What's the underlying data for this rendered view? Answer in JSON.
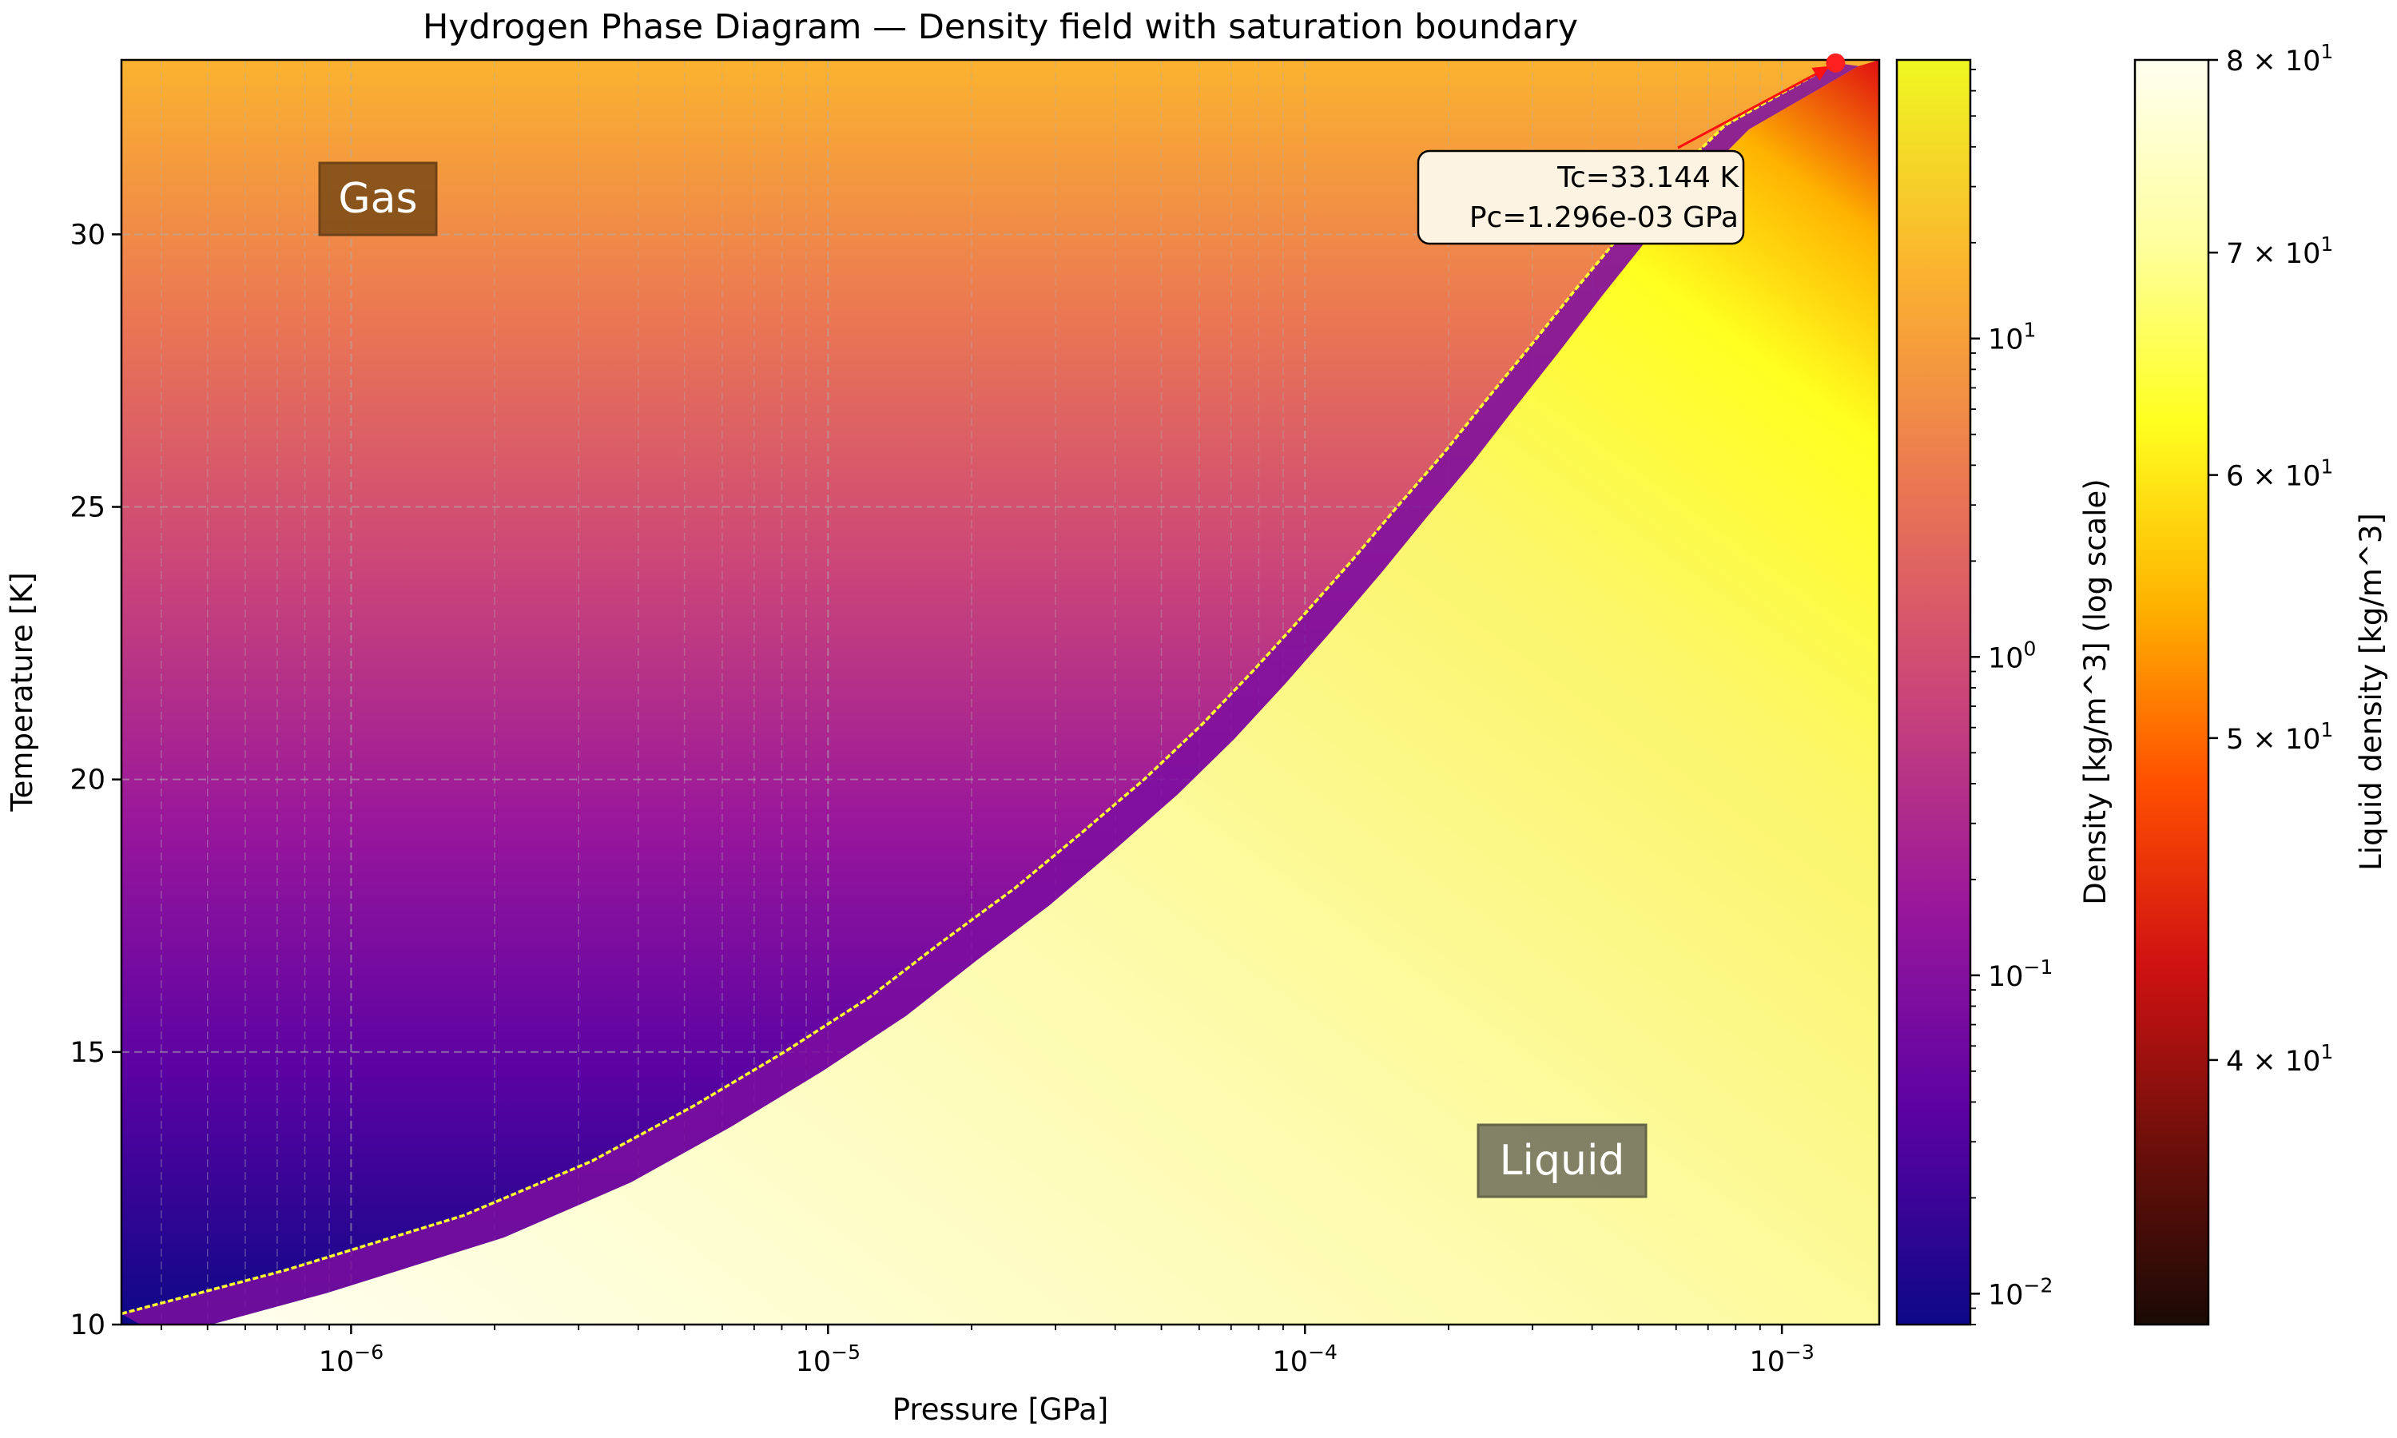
{
  "chart_data": {
    "type": "heatmap",
    "title": "Hydrogen Phase Diagram — Density field with saturation boundary",
    "xlabel": "Pressure [GPa]",
    "ylabel": "Temperature [K]",
    "x_scale": "log",
    "xlim": [
      3.3e-07,
      0.0016
    ],
    "ylim": [
      10,
      33.2
    ],
    "x_ticks": [
      {
        "value": 1e-06,
        "base": "10",
        "exp": "−6"
      },
      {
        "value": 1e-05,
        "base": "10",
        "exp": "−5"
      },
      {
        "value": 0.0001,
        "base": "10",
        "exp": "−4"
      },
      {
        "value": 0.001,
        "base": "10",
        "exp": "−3"
      }
    ],
    "y_ticks": [
      "10",
      "15",
      "20",
      "25",
      "30"
    ],
    "grid": true,
    "regions": {
      "gas_label": "Gas",
      "liquid_label": "Liquid"
    },
    "critical_point": {
      "Tc": 33.144,
      "Pc": 0.001296,
      "annotation_lines": [
        "Tc=33.144 K",
        "Pc=1.296e-03 GPa"
      ]
    },
    "saturation_boundary": {
      "description_units": "T [K] vs P [GPa]",
      "T": [
        10.2,
        11,
        12,
        13,
        14,
        15,
        16,
        17,
        18,
        19,
        20,
        21,
        22,
        23,
        24,
        25,
        26,
        27,
        28,
        29,
        30,
        31,
        32,
        33.144
      ],
      "P": [
        3.3e-07,
        7.3e-07,
        1.72e-06,
        3.2e-06,
        5.2e-06,
        8.1e-06,
        1.22e-05,
        1.72e-05,
        2.46e-05,
        3.38e-05,
        4.6e-05,
        6.07e-05,
        7.8e-05,
        9.9e-05,
        0.000125,
        0.000156,
        0.000196,
        0.000242,
        0.0003,
        0.00037,
        0.00046,
        0.00058,
        0.00076,
        0.001296
      ]
    },
    "colorbars": [
      {
        "label": "Density [kg/m^3] (log scale)",
        "scale": "log",
        "range": [
          0.008,
          75
        ],
        "ticks": [
          {
            "value": 0.01,
            "base": "10",
            "exp": "−2"
          },
          {
            "value": 0.1,
            "base": "10",
            "exp": "−1"
          },
          {
            "value": 1,
            "base": "10",
            "exp": "0"
          },
          {
            "value": 10,
            "base": "10",
            "exp": "1"
          }
        ],
        "colormap": "plasma",
        "colors": [
          "#0d0887",
          "#5b02a3",
          "#9a179b",
          "#cb4678",
          "#eb7852",
          "#fbb32f",
          "#eff821"
        ]
      },
      {
        "label": "Liquid density [kg/m^3]",
        "scale": "log",
        "range": [
          33.3,
          80
        ],
        "ticks": [
          {
            "value": 40,
            "base": "4 × 10",
            "exp": "1"
          },
          {
            "value": 50,
            "base": "5 × 10",
            "exp": "1"
          },
          {
            "value": 60,
            "base": "6 × 10",
            "exp": "1"
          },
          {
            "value": 70,
            "base": "7 × 10",
            "exp": "1"
          },
          {
            "value": 80,
            "base": "8 × 10",
            "exp": "1"
          }
        ],
        "colormap": "afmhot",
        "colors": [
          "#1a0a05",
          "#6e0f0a",
          "#d11212",
          "#ff5000",
          "#ffb400",
          "#ffff20",
          "#ffffa0",
          "#fffff0"
        ]
      }
    ],
    "colors": {
      "boundary_line": "#ffff30",
      "critical_marker": "#ff2020",
      "arrow": "#ff1010",
      "gas_box": "#7a4a15",
      "liquid_box": "#757560"
    }
  }
}
